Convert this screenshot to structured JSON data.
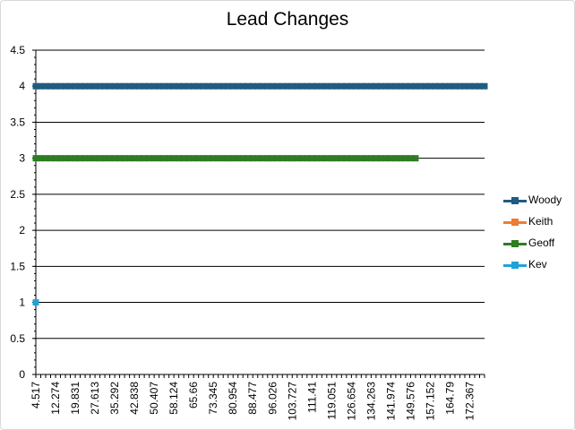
{
  "chart_data": {
    "type": "line",
    "title": "Lead Changes",
    "ylim": [
      0,
      4.5
    ],
    "y_ticks": [
      "0",
      "0.5",
      "1",
      "1.5",
      "2",
      "2.5",
      "3",
      "3.5",
      "4",
      "4.5"
    ],
    "x_tick_labels": [
      "4.517",
      "12.274",
      "19.831",
      "27.613",
      "35.292",
      "42.838",
      "50.407",
      "58.124",
      "65.66",
      "73.345",
      "80.954",
      "88.477",
      "96.026",
      "103.727",
      "111.41",
      "119.051",
      "126.654",
      "134.263",
      "141.974",
      "149.576",
      "157.152",
      "164.79",
      "172.367"
    ],
    "x_point_count": 92,
    "grid": true,
    "legend_position": "right",
    "series": [
      {
        "name": "Woody",
        "color": "#1f5c82",
        "value": 4,
        "from_index": 0,
        "to_index": 91
      },
      {
        "name": "Keith",
        "color": "#ed7d31",
        "value": null,
        "from_index": 0,
        "to_index": -1
      },
      {
        "name": "Geoff",
        "color": "#2e7d23",
        "value": 3,
        "from_index": 0,
        "to_index": 77
      },
      {
        "name": "Kev",
        "color": "#1fa3d7",
        "value": 1,
        "from_index": 0,
        "to_index": 0
      }
    ]
  }
}
